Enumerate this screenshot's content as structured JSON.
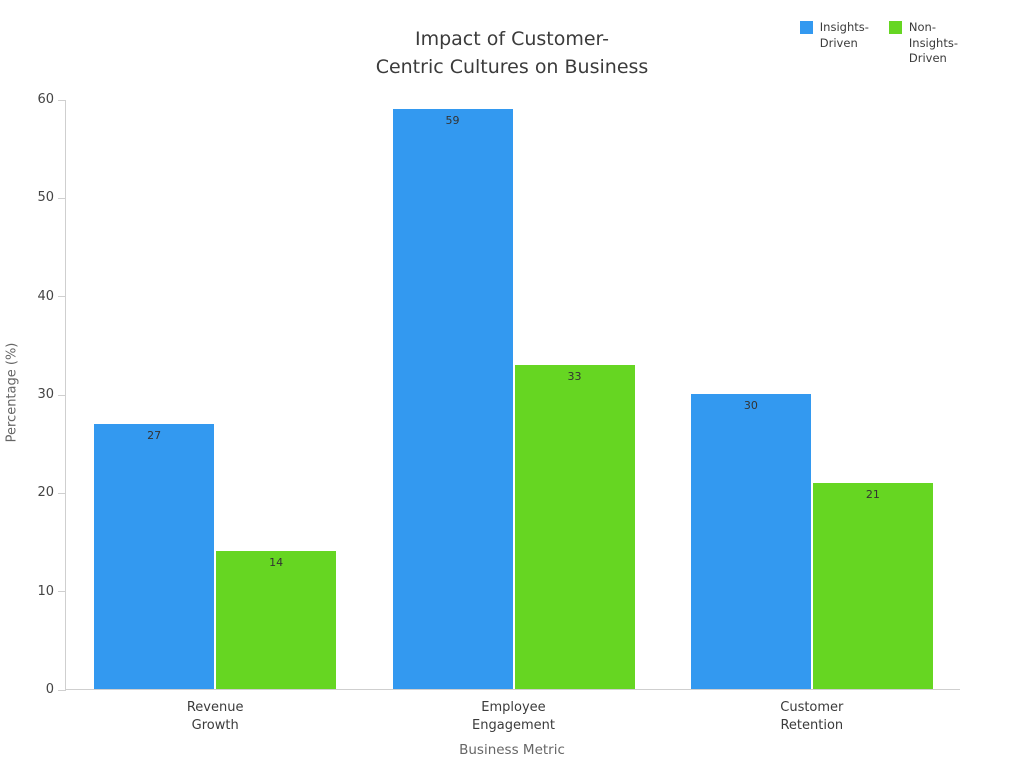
{
  "chart_data": {
    "type": "bar",
    "title": "Impact of Customer-Centric Cultures on Business",
    "title_lines": [
      "Impact of Customer-",
      "Centric Cultures on Business"
    ],
    "xlabel": "Business Metric",
    "ylabel": "Percentage (%)",
    "categories": [
      "Revenue Growth",
      "Employee Engagement",
      "Customer Retention"
    ],
    "category_lines": [
      [
        "Revenue",
        "Growth"
      ],
      [
        "Employee",
        "Engagement"
      ],
      [
        "Customer",
        "Retention"
      ]
    ],
    "series": [
      {
        "name": "Insights-Driven",
        "label_lines": [
          "Insights-",
          "Driven"
        ],
        "color": "#3399f0",
        "values": [
          27,
          59,
          30
        ]
      },
      {
        "name": "Non-Insights-Driven",
        "label_lines": [
          "Non-",
          "Insights-",
          "Driven"
        ],
        "color": "#66d622",
        "values": [
          14,
          33,
          21
        ]
      }
    ],
    "ylim": [
      0,
      60
    ],
    "yticks": [
      0,
      10,
      20,
      30,
      40,
      50,
      60
    ],
    "grid": false,
    "legend_position": "top-right",
    "value_labels_shown": true
  }
}
